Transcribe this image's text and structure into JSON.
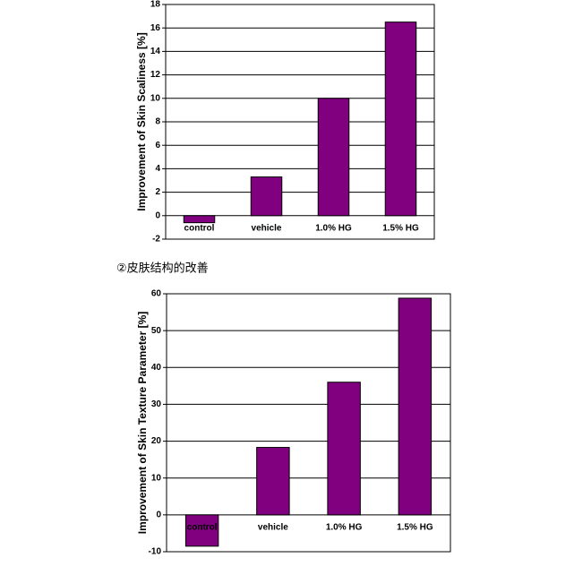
{
  "caption": "②皮肤结构的改善",
  "chart_data": [
    {
      "type": "bar",
      "y_label": "Improvement of Skin Scaliness [%]",
      "categories": [
        "control",
        "vehicle",
        "1.0% HG",
        "1.5% HG"
      ],
      "values": [
        -0.6,
        3.3,
        10,
        16.5
      ],
      "color": "#800080",
      "ylim": [
        -2,
        18
      ],
      "yticks": [
        -2,
        0,
        2,
        4,
        6,
        8,
        10,
        12,
        14,
        16,
        18
      ],
      "grid": true
    },
    {
      "type": "bar",
      "y_label": "Improvement of Skin Texture Parameter [%]",
      "categories": [
        "control",
        "vehicle",
        "1.0% HG",
        "1.5% HG"
      ],
      "values": [
        -8.5,
        18.3,
        36,
        58.8
      ],
      "color": "#800080",
      "ylim": [
        -10,
        60
      ],
      "yticks": [
        -10,
        0,
        10,
        20,
        30,
        40,
        50,
        60
      ],
      "grid": true
    }
  ]
}
